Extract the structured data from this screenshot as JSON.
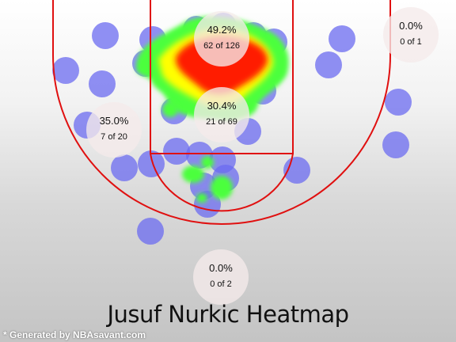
{
  "chart_data": {
    "type": "heatmap",
    "title": "Jusuf Nurkic Heatmap",
    "player": "Jusuf Nurkic",
    "zones": [
      {
        "name": "restricted-area",
        "pct": "49.2%",
        "made": 62,
        "attempts": 126,
        "label": "62 of 126"
      },
      {
        "name": "paint-non-ra",
        "pct": "30.4%",
        "made": 21,
        "attempts": 69,
        "label": "21 of 69"
      },
      {
        "name": "left-midrange",
        "pct": "35.0%",
        "made": 7,
        "attempts": 20,
        "label": "7 of 20"
      },
      {
        "name": "right-corner-three",
        "pct": "0.0%",
        "made": 0,
        "attempts": 1,
        "label": "0 of 1"
      },
      {
        "name": "backcourt",
        "pct": "0.0%",
        "made": 0,
        "attempts": 2,
        "label": "0 of 2"
      }
    ],
    "colors": {
      "court_lines": "#e01010",
      "shot_dot": "#6b6bf0",
      "heat_low": "#4cff3c",
      "heat_mid": "#ffff00",
      "heat_high": "#ff1a00"
    }
  },
  "credit": "* Generated by NBAsavant.com"
}
